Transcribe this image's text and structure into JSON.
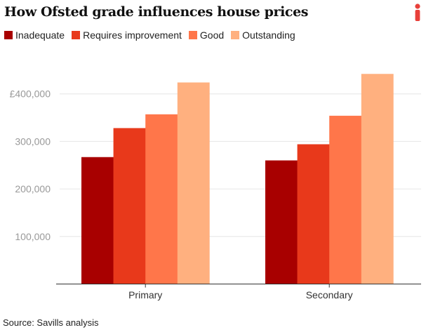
{
  "chart_data": {
    "type": "bar",
    "title": "How Ofsted grade influences house prices",
    "categories": [
      "Primary",
      "Secondary"
    ],
    "series": [
      {
        "name": "Inadequate",
        "color": "#a80000",
        "values": [
          267000,
          260000
        ]
      },
      {
        "name": "Requires improvement",
        "color": "#e8391b",
        "values": [
          328000,
          294000
        ]
      },
      {
        "name": "Good",
        "color": "#ff764a",
        "values": [
          357000,
          354000
        ]
      },
      {
        "name": "Outstanding",
        "color": "#ffb07f",
        "values": [
          424000,
          442000
        ]
      }
    ],
    "yticks": [
      100000,
      200000,
      300000,
      400000
    ],
    "ytick_labels": [
      "100,000",
      "200,000",
      "300,000",
      "£400,000"
    ],
    "ylim": [
      0,
      450000
    ],
    "grid": true,
    "legend": "top-left",
    "xlabel": "",
    "ylabel": ""
  },
  "source": "Source: Savills analysis",
  "logo": {
    "text": "i",
    "color": "#e8403a"
  }
}
